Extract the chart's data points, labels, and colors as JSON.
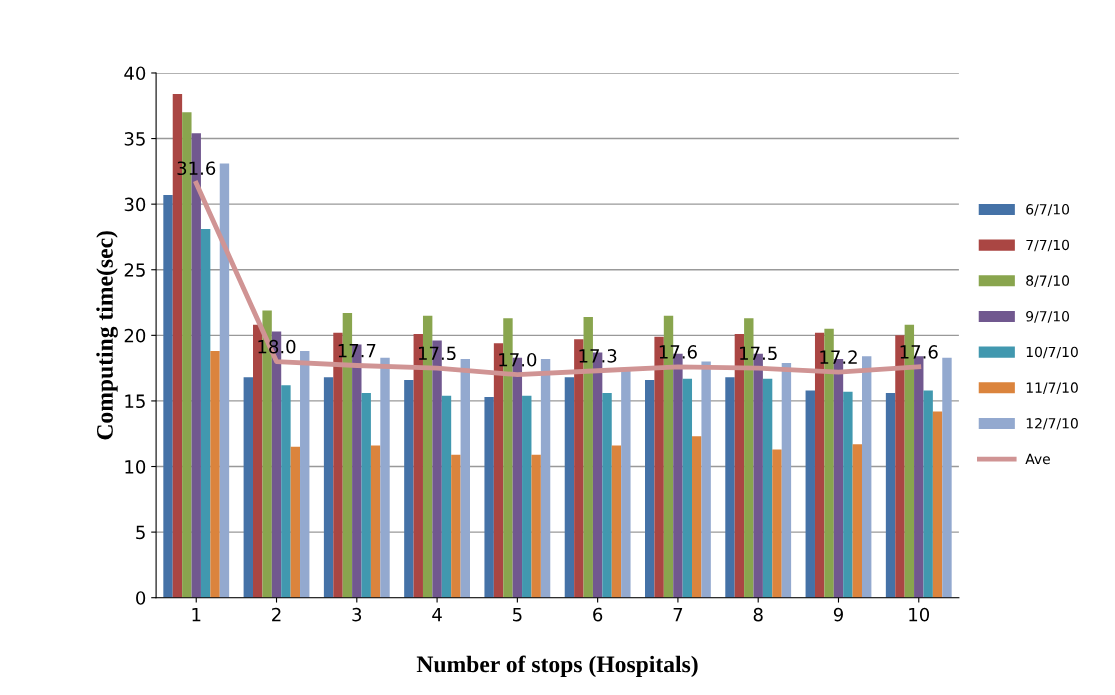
{
  "chart_data": {
    "type": "bar",
    "xlabel": "Number of stops (Hospitals)",
    "ylabel": "Computing time(sec)",
    "categories": [
      "1",
      "2",
      "3",
      "4",
      "5",
      "6",
      "7",
      "8",
      "9",
      "10"
    ],
    "ylim": [
      0,
      40
    ],
    "yticks": [
      0,
      5,
      10,
      15,
      20,
      25,
      30,
      35,
      40
    ],
    "grid": "y",
    "legend": "right",
    "series": [
      {
        "name": "6/7/10",
        "color": "#4572a7",
        "values": [
          30.7,
          16.8,
          16.8,
          16.6,
          15.3,
          16.8,
          16.6,
          16.8,
          15.8,
          15.6
        ]
      },
      {
        "name": "7/7/10",
        "color": "#aa4643",
        "values": [
          38.4,
          20.8,
          20.2,
          20.1,
          19.4,
          19.7,
          19.9,
          20.1,
          20.2,
          20.0
        ]
      },
      {
        "name": "8/7/10",
        "color": "#89a54e",
        "values": [
          37.0,
          21.9,
          21.7,
          21.5,
          21.3,
          21.4,
          21.5,
          21.3,
          20.5,
          20.8
        ]
      },
      {
        "name": "9/7/10",
        "color": "#71588f",
        "values": [
          35.4,
          20.3,
          19.3,
          19.6,
          18.3,
          18.7,
          18.6,
          18.6,
          18.2,
          18.4
        ]
      },
      {
        "name": "10/7/10",
        "color": "#4198af",
        "values": [
          28.1,
          16.2,
          15.6,
          15.4,
          15.4,
          15.6,
          16.7,
          16.7,
          15.7,
          15.8
        ]
      },
      {
        "name": "11/7/10",
        "color": "#db843d",
        "values": [
          18.8,
          11.5,
          11.6,
          10.9,
          10.9,
          11.6,
          12.3,
          11.3,
          11.7,
          14.2
        ]
      },
      {
        "name": "12/7/10",
        "color": "#93a9cf",
        "values": [
          33.1,
          18.8,
          18.3,
          18.2,
          18.2,
          17.4,
          18.0,
          17.9,
          18.4,
          18.3
        ]
      },
      {
        "name": "Ave",
        "type": "line",
        "color": "#d09494",
        "marker": "none",
        "values": [
          31.6,
          18.0,
          17.7,
          17.5,
          17.0,
          17.3,
          17.6,
          17.5,
          17.2,
          17.6
        ],
        "value_labels": [
          "31.6",
          "18.0",
          "17.7",
          "17.5",
          "17.0",
          "17.3",
          "17.6",
          "17.5",
          "17.2",
          "17.6"
        ]
      }
    ]
  }
}
